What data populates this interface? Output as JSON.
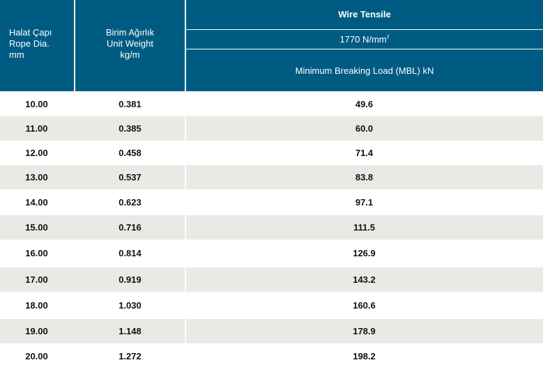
{
  "header": {
    "col1_line1": "Halat Çapı",
    "col1_line2": "Rope Dia.",
    "col1_line3": "mm",
    "col2_line1": "Birim Ağırlık",
    "col2_line2": "Unit Weight",
    "col2_line3": "kg/m",
    "group_title": "Wire Tensile",
    "tensile_value": "1770 N/mm",
    "tensile_sup": "2",
    "mbl_label": "Minimum Breaking Load (MBL) kN"
  },
  "rows": [
    {
      "diameter": "10.00",
      "weight": "0.381",
      "mbl": "49.6"
    },
    {
      "diameter": "11.00",
      "weight": "0.385",
      "mbl": "60.0"
    },
    {
      "diameter": "12.00",
      "weight": "0.458",
      "mbl": "71.4"
    },
    {
      "diameter": "13.00",
      "weight": "0.537",
      "mbl": "83.8"
    },
    {
      "diameter": "14.00",
      "weight": "0.623",
      "mbl": "97.1"
    },
    {
      "diameter": "15.00",
      "weight": "0.716",
      "mbl": "111.5"
    },
    {
      "diameter": "16.00",
      "weight": "0.814",
      "mbl": "126.9"
    },
    {
      "diameter": "17.00",
      "weight": "0.919",
      "mbl": "143.2"
    },
    {
      "diameter": "18.00",
      "weight": "1.030",
      "mbl": "160.6"
    },
    {
      "diameter": "19.00",
      "weight": "1.148",
      "mbl": "178.9"
    },
    {
      "diameter": "20.00",
      "weight": "1.272",
      "mbl": "198.2"
    }
  ],
  "colors": {
    "header_bg": "#005b82",
    "stripe_bg": "#ebe9e6",
    "text": "#111111"
  }
}
